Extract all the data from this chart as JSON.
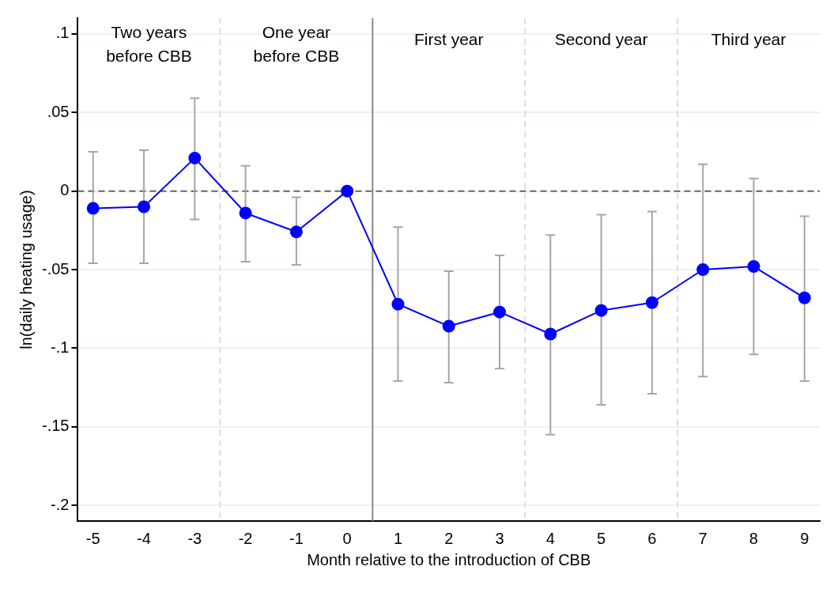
{
  "chart_data": {
    "type": "line",
    "xlabel": "Month relative to the introduction of CBB",
    "ylabel": "ln(daily heating usage)",
    "x": [
      -5,
      -4,
      -3,
      -2,
      -1,
      0,
      1,
      2,
      3,
      4,
      5,
      6,
      7,
      8,
      9
    ],
    "series": [
      {
        "color": "#0000ff",
        "values": [
          -0.011,
          -0.01,
          0.021,
          -0.014,
          -0.026,
          0,
          -0.072,
          -0.086,
          -0.077,
          -0.091,
          -0.076,
          -0.071,
          -0.05,
          -0.048,
          -0.068
        ],
        "errors": [
          [
            -0.046,
            0.025
          ],
          [
            -0.046,
            0.026
          ],
          [
            -0.018,
            0.059
          ],
          [
            -0.045,
            0.016
          ],
          [
            -0.047,
            -0.004
          ],
          null,
          [
            -0.121,
            -0.023
          ],
          [
            -0.122,
            -0.051
          ],
          [
            -0.113,
            -0.041
          ],
          [
            -0.155,
            -0.028
          ],
          [
            -0.136,
            -0.015
          ],
          [
            -0.129,
            -0.013
          ],
          [
            -0.118,
            0.017
          ],
          [
            -0.104,
            0.008
          ],
          [
            -0.121,
            -0.016
          ]
        ]
      }
    ],
    "xlim": [
      -5.3,
      9.3
    ],
    "ylim": [
      -0.21,
      0.11
    ],
    "xticks": [
      -5,
      -4,
      -3,
      -2,
      -1,
      0,
      1,
      2,
      3,
      4,
      5,
      6,
      7,
      8,
      9
    ],
    "yticks": [
      {
        "value": -0.2,
        "label": "-.2"
      },
      {
        "value": -0.15,
        "label": "-.15"
      },
      {
        "value": -0.1,
        "label": "-.1"
      },
      {
        "value": -0.05,
        "label": "-.05"
      },
      0,
      {
        "value": 0.05,
        "label": ".05"
      },
      {
        "value": 0.1,
        "label": ".1"
      }
    ],
    "grid": "y",
    "marker": "circle",
    "line_style": "solid",
    "legend": false,
    "ref_lines": [
      {
        "axis": "y",
        "value": 0,
        "color": "#666666",
        "line_style": "dashed"
      },
      {
        "axis": "x",
        "value": 0.5,
        "color": "#888888",
        "line_style": "solid"
      },
      {
        "axis": "x",
        "value": -2.5,
        "color": "#dddddd",
        "line_style": "dashed"
      },
      {
        "axis": "x",
        "value": 3.5,
        "color": "#dddddd",
        "line_style": "dashed"
      },
      {
        "axis": "x",
        "value": 6.5,
        "color": "#dddddd",
        "line_style": "dashed"
      }
    ],
    "annotations": [
      "Two years\nbefore CBB",
      "One year\nbefore CBB",
      "First year",
      "Second year",
      "Third year"
    ]
  }
}
